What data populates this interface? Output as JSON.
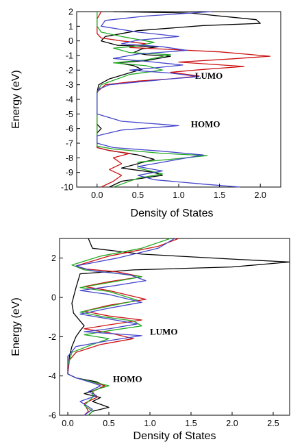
{
  "chart_data": [
    {
      "type": "line",
      "xlabel": "Density of States",
      "ylabel": "Energy (eV)",
      "xlim": [
        -0.25,
        2.25
      ],
      "ylim": [
        -10,
        2
      ],
      "xticks": [
        0.0,
        0.5,
        1.0,
        1.5,
        2.0
      ],
      "xtick_labels": [
        "0.0",
        "0.5",
        "1.0",
        "1.5",
        "2.0"
      ],
      "yticks": [
        -10,
        -9,
        -8,
        -7,
        -6,
        -5,
        -4,
        -3,
        -2,
        -1,
        0,
        1,
        2
      ],
      "ytick_labels": [
        "-10",
        "-9",
        "-8",
        "-7",
        "-6",
        "-5",
        "-4",
        "-3",
        "-2",
        "-1",
        "0",
        "1",
        "2"
      ],
      "annotations": [
        {
          "text": "LUMO",
          "x": 1.2,
          "y": -2.6
        },
        {
          "text": "HOMO",
          "x": 1.15,
          "y": -5.9
        }
      ],
      "grid": false,
      "series": [
        {
          "color": "#000000",
          "points": [
            [
              0.2,
              2.0
            ],
            [
              1.15,
              1.9
            ],
            [
              1.95,
              1.45
            ],
            [
              2.0,
              1.2
            ],
            [
              1.3,
              1.05
            ],
            [
              0.5,
              0.7
            ],
            [
              0.1,
              0.3
            ],
            [
              0.05,
              0.0
            ],
            [
              0.25,
              -0.3
            ],
            [
              0.75,
              -0.4
            ],
            [
              0.55,
              -0.55
            ],
            [
              0.45,
              -0.8
            ],
            [
              0.6,
              -0.95
            ],
            [
              0.9,
              -1.05
            ],
            [
              0.6,
              -1.35
            ],
            [
              0.25,
              -1.5
            ],
            [
              0.45,
              -1.7
            ],
            [
              0.55,
              -1.95
            ],
            [
              0.45,
              -2.1
            ],
            [
              0.15,
              -2.6
            ],
            [
              0.02,
              -3.0
            ],
            [
              0.0,
              -3.5
            ],
            [
              0.0,
              -5.7
            ],
            [
              0.05,
              -6.0
            ],
            [
              0.0,
              -6.3
            ],
            [
              0.0,
              -7.3
            ],
            [
              0.15,
              -7.5
            ],
            [
              0.5,
              -7.8
            ],
            [
              0.7,
              -8.1
            ],
            [
              0.5,
              -8.4
            ],
            [
              0.3,
              -8.7
            ],
            [
              0.7,
              -9.0
            ],
            [
              0.8,
              -9.2
            ],
            [
              0.3,
              -9.6
            ],
            [
              0.15,
              -10.0
            ]
          ]
        },
        {
          "color": "#cc1111",
          "points": [
            [
              0.05,
              2.0
            ],
            [
              0.0,
              1.5
            ],
            [
              0.0,
              0.5
            ],
            [
              0.05,
              0.2
            ],
            [
              0.3,
              0.0
            ],
            [
              0.6,
              -0.2
            ],
            [
              0.4,
              -0.45
            ],
            [
              1.5,
              -0.75
            ],
            [
              2.12,
              -1.05
            ],
            [
              1.6,
              -1.25
            ],
            [
              1.0,
              -1.45
            ],
            [
              1.8,
              -1.75
            ],
            [
              1.3,
              -1.95
            ],
            [
              0.9,
              -2.15
            ],
            [
              1.25,
              -2.4
            ],
            [
              0.9,
              -2.6
            ],
            [
              0.5,
              -2.75
            ],
            [
              0.1,
              -3.0
            ],
            [
              0.0,
              -3.5
            ],
            [
              0.0,
              -7.3
            ],
            [
              0.15,
              -7.5
            ],
            [
              0.4,
              -7.7
            ],
            [
              0.2,
              -8.0
            ],
            [
              0.3,
              -8.4
            ],
            [
              0.15,
              -8.8
            ],
            [
              0.3,
              -9.2
            ],
            [
              0.2,
              -9.6
            ],
            [
              0.05,
              -10.0
            ]
          ]
        },
        {
          "color": "#22aa22",
          "points": [
            [
              0.0,
              2.0
            ],
            [
              0.0,
              1.0
            ],
            [
              0.05,
              0.6
            ],
            [
              0.3,
              0.3
            ],
            [
              0.7,
              -0.1
            ],
            [
              0.5,
              -0.35
            ],
            [
              0.2,
              -0.5
            ],
            [
              0.4,
              -0.8
            ],
            [
              0.9,
              -0.95
            ],
            [
              0.6,
              -1.3
            ],
            [
              0.2,
              -1.5
            ],
            [
              0.6,
              -1.7
            ],
            [
              0.8,
              -2.0
            ],
            [
              0.4,
              -2.3
            ],
            [
              0.15,
              -2.8
            ],
            [
              0.05,
              -3.0
            ],
            [
              0.0,
              -3.5
            ],
            [
              0.0,
              -7.2
            ],
            [
              0.2,
              -7.4
            ],
            [
              0.8,
              -7.7
            ],
            [
              1.35,
              -7.85
            ],
            [
              0.9,
              -8.1
            ],
            [
              0.5,
              -8.3
            ],
            [
              0.5,
              -8.7
            ],
            [
              0.8,
              -9.1
            ],
            [
              0.5,
              -9.4
            ],
            [
              0.3,
              -9.8
            ],
            [
              0.2,
              -10.0
            ]
          ]
        },
        {
          "color": "#4444cc",
          "points": [
            [
              1.4,
              2.0
            ],
            [
              0.6,
              1.7
            ],
            [
              0.1,
              1.4
            ],
            [
              0.05,
              1.0
            ],
            [
              0.5,
              0.6
            ],
            [
              1.0,
              0.3
            ],
            [
              0.5,
              0.05
            ],
            [
              0.3,
              -0.2
            ],
            [
              0.8,
              -0.4
            ],
            [
              1.1,
              -0.65
            ],
            [
              0.5,
              -0.9
            ],
            [
              0.2,
              -1.2
            ],
            [
              0.6,
              -1.4
            ],
            [
              1.05,
              -1.65
            ],
            [
              0.7,
              -1.85
            ],
            [
              0.4,
              -2.0
            ],
            [
              0.9,
              -2.2
            ],
            [
              1.25,
              -2.45
            ],
            [
              0.9,
              -2.6
            ],
            [
              0.15,
              -3.0
            ],
            [
              0.02,
              -3.3
            ],
            [
              0.0,
              -3.6
            ],
            [
              0.0,
              -5.0
            ],
            [
              0.3,
              -5.5
            ],
            [
              1.0,
              -5.8
            ],
            [
              0.3,
              -6.1
            ],
            [
              0.0,
              -6.5
            ],
            [
              0.0,
              -7.0
            ],
            [
              0.2,
              -7.3
            ],
            [
              0.8,
              -7.55
            ],
            [
              1.3,
              -7.8
            ],
            [
              0.9,
              -8.2
            ],
            [
              0.5,
              -8.6
            ],
            [
              0.8,
              -8.9
            ],
            [
              0.5,
              -9.2
            ],
            [
              0.7,
              -9.5
            ],
            [
              1.3,
              -9.8
            ],
            [
              1.75,
              -10.0
            ]
          ]
        }
      ]
    },
    {
      "type": "line",
      "xlabel": "Density of States",
      "ylabel": "Energy (eV)",
      "xlim": [
        -0.1,
        2.7
      ],
      "ylim": [
        -6,
        3
      ],
      "xticks": [
        0.0,
        0.5,
        1.0,
        1.5,
        2.0,
        2.5
      ],
      "xtick_labels": [
        "0.0",
        "0.5",
        "1.0",
        "1.5",
        "2.0",
        "2.5"
      ],
      "yticks": [
        -6,
        -4,
        -2,
        0,
        2
      ],
      "ytick_labels": [
        "-6",
        "-4",
        "-2",
        "0",
        "2"
      ],
      "annotations": [
        {
          "text": "LUMO",
          "x": 1.0,
          "y": -1.9
        },
        {
          "text": "HOMO",
          "x": 0.55,
          "y": -4.3
        }
      ],
      "grid": false,
      "series": [
        {
          "color": "#000000",
          "points": [
            [
              0.25,
              3.0
            ],
            [
              0.3,
              2.5
            ],
            [
              0.9,
              2.2
            ],
            [
              2.0,
              1.95
            ],
            [
              2.7,
              1.8
            ],
            [
              2.0,
              1.55
            ],
            [
              0.8,
              1.4
            ],
            [
              0.15,
              1.2
            ],
            [
              0.1,
              0.5
            ],
            [
              0.05,
              -0.3
            ],
            [
              0.07,
              -0.8
            ],
            [
              0.15,
              -1.2
            ],
            [
              0.2,
              -1.45
            ],
            [
              0.15,
              -1.7
            ],
            [
              0.1,
              -2.0
            ],
            [
              0.05,
              -2.5
            ],
            [
              0.02,
              -3.0
            ],
            [
              0.0,
              -3.9
            ],
            [
              0.1,
              -4.1
            ],
            [
              0.35,
              -4.3
            ],
            [
              0.45,
              -4.5
            ],
            [
              0.35,
              -4.7
            ],
            [
              0.2,
              -4.9
            ],
            [
              0.4,
              -5.1
            ],
            [
              0.3,
              -5.3
            ],
            [
              0.5,
              -5.6
            ],
            [
              0.3,
              -5.8
            ],
            [
              0.25,
              -6.0
            ]
          ]
        },
        {
          "color": "#cc1111",
          "points": [
            [
              1.35,
              3.0
            ],
            [
              1.1,
              2.6
            ],
            [
              0.5,
              2.1
            ],
            [
              0.1,
              1.6
            ],
            [
              0.2,
              1.45
            ],
            [
              0.6,
              1.3
            ],
            [
              0.9,
              1.05
            ],
            [
              0.5,
              0.8
            ],
            [
              0.2,
              0.55
            ],
            [
              0.5,
              0.35
            ],
            [
              0.95,
              -0.1
            ],
            [
              0.5,
              -0.4
            ],
            [
              0.2,
              -0.7
            ],
            [
              0.5,
              -0.95
            ],
            [
              0.9,
              -1.15
            ],
            [
              0.5,
              -1.4
            ],
            [
              0.2,
              -1.6
            ],
            [
              0.5,
              -1.8
            ],
            [
              0.8,
              -2.1
            ],
            [
              0.4,
              -2.4
            ],
            [
              0.1,
              -2.8
            ],
            [
              0.02,
              -3.2
            ],
            [
              0.0,
              -3.9
            ],
            [
              0.1,
              -4.1
            ],
            [
              0.3,
              -4.3
            ],
            [
              0.45,
              -4.5
            ],
            [
              0.3,
              -4.8
            ],
            [
              0.35,
              -5.1
            ],
            [
              0.2,
              -5.4
            ],
            [
              0.25,
              -5.8
            ],
            [
              0.2,
              -6.0
            ]
          ]
        },
        {
          "color": "#22aa22",
          "points": [
            [
              1.25,
              3.0
            ],
            [
              0.9,
              2.5
            ],
            [
              0.4,
              2.1
            ],
            [
              0.05,
              1.65
            ],
            [
              0.2,
              1.4
            ],
            [
              0.55,
              1.25
            ],
            [
              0.9,
              1.05
            ],
            [
              0.5,
              0.75
            ],
            [
              0.15,
              0.5
            ],
            [
              0.5,
              0.3
            ],
            [
              0.85,
              -0.15
            ],
            [
              0.5,
              -0.45
            ],
            [
              0.15,
              -0.75
            ],
            [
              0.45,
              -1.0
            ],
            [
              0.8,
              -1.2
            ],
            [
              0.9,
              -1.45
            ],
            [
              0.5,
              -1.7
            ],
            [
              0.2,
              -1.9
            ],
            [
              0.5,
              -2.1
            ],
            [
              0.3,
              -2.4
            ],
            [
              0.05,
              -2.8
            ],
            [
              0.0,
              -3.5
            ],
            [
              0.0,
              -3.9
            ],
            [
              0.1,
              -4.1
            ],
            [
              0.3,
              -4.3
            ],
            [
              0.5,
              -4.5
            ],
            [
              0.3,
              -4.75
            ],
            [
              0.3,
              -5.1
            ],
            [
              0.2,
              -5.5
            ],
            [
              0.3,
              -5.8
            ],
            [
              0.25,
              -6.0
            ]
          ]
        },
        {
          "color": "#4444cc",
          "points": [
            [
              1.3,
              3.0
            ],
            [
              1.1,
              2.5
            ],
            [
              0.6,
              2.0
            ],
            [
              0.1,
              1.6
            ],
            [
              0.3,
              1.35
            ],
            [
              0.75,
              1.15
            ],
            [
              0.95,
              0.85
            ],
            [
              0.5,
              0.55
            ],
            [
              0.15,
              0.35
            ],
            [
              0.5,
              0.15
            ],
            [
              0.9,
              -0.25
            ],
            [
              0.5,
              -0.55
            ],
            [
              0.15,
              -0.85
            ],
            [
              0.5,
              -1.1
            ],
            [
              0.85,
              -1.35
            ],
            [
              0.5,
              -1.6
            ],
            [
              0.2,
              -1.75
            ],
            [
              0.55,
              -1.85
            ],
            [
              0.9,
              -1.95
            ],
            [
              0.5,
              -2.2
            ],
            [
              0.1,
              -2.5
            ],
            [
              0.0,
              -3.0
            ],
            [
              0.0,
              -3.9
            ],
            [
              0.1,
              -4.1
            ],
            [
              0.3,
              -4.35
            ],
            [
              0.4,
              -4.5
            ],
            [
              0.25,
              -4.8
            ],
            [
              0.35,
              -5.0
            ],
            [
              0.15,
              -5.3
            ],
            [
              0.3,
              -5.7
            ],
            [
              0.2,
              -6.0
            ]
          ]
        }
      ]
    }
  ]
}
